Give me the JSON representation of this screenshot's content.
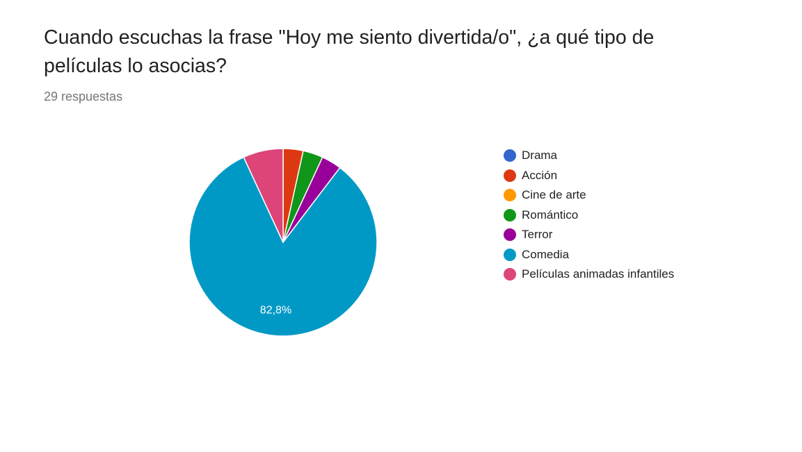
{
  "question": {
    "title": "Cuando escuchas la frase \"Hoy me siento divertida/o\", ¿a qué tipo de películas lo asocias?",
    "responses": "29 respuestas"
  },
  "chart_data": {
    "type": "pie",
    "total_responses": 29,
    "categories": [
      "Drama",
      "Acción",
      "Cine de arte",
      "Romántico",
      "Terror",
      "Comedia",
      "Películas animadas infantiles"
    ],
    "values": [
      0,
      1,
      0,
      1,
      1,
      24,
      2
    ],
    "colors": [
      "#3366cc",
      "#dc3912",
      "#ff9900",
      "#109618",
      "#990099",
      "#0099c6",
      "#dd4477"
    ],
    "data_labels": [
      "",
      "",
      "",
      "",
      "",
      "82,8%",
      ""
    ],
    "legend_position": "right"
  }
}
